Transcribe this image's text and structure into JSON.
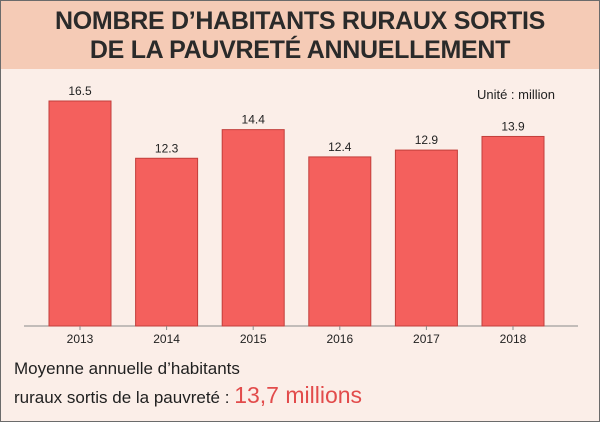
{
  "title": {
    "line1": "NOMBRE D’HABITANTS RURAUX SORTIS",
    "line2": "DE LA PAUVRETÉ ANNUELLEMENT"
  },
  "footer": {
    "line1": "Moyenne annuelle d’habitants",
    "line2_prefix": "ruraux sortis de la pauvreté :",
    "highlight": "13,7 millions"
  },
  "colors": {
    "bar_fill": "#f4605d",
    "bar_stroke": "#c23e3b",
    "title_band": "#f5cbb6",
    "background": "#fbeee8",
    "highlight_text": "#e24b4b"
  },
  "chart_data": {
    "type": "bar",
    "categories": [
      "2013",
      "2014",
      "2015",
      "2016",
      "2017",
      "2018"
    ],
    "values": [
      16.5,
      12.3,
      14.4,
      12.4,
      12.9,
      13.9
    ],
    "value_labels": [
      "16.5",
      "12.3",
      "14.4",
      "12.4",
      "12.9",
      "13.9"
    ],
    "unit_label": "Unité : million",
    "ylim": [
      0,
      16.5
    ],
    "grid": false,
    "legend": "none"
  }
}
